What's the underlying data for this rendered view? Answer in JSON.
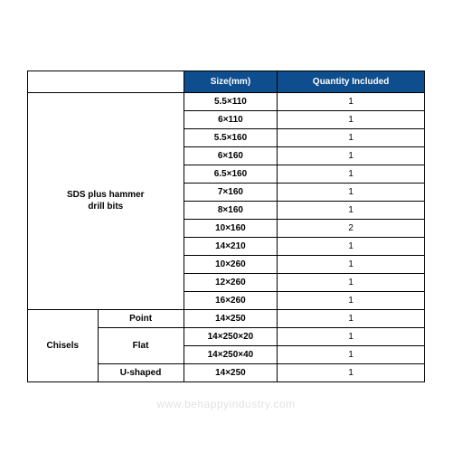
{
  "table": {
    "type": "table",
    "header_bg": "#0f4e8e",
    "header_fg": "#ffffff",
    "border_color": "#000000",
    "background_color": "#ffffff",
    "font_family": "Arial",
    "header_fontsize": 10,
    "cell_fontsize": 10,
    "columns": [
      "",
      "",
      "Size(mm)",
      "Quantity Included"
    ],
    "groups": [
      {
        "label": "SDS plus hammer drill bits",
        "rows": [
          {
            "size": "5.5×110",
            "qty": "1"
          },
          {
            "size": "6×110",
            "qty": "1"
          },
          {
            "size": "5.5×160",
            "qty": "1"
          },
          {
            "size": "6×160",
            "qty": "1"
          },
          {
            "size": "6.5×160",
            "qty": "1"
          },
          {
            "size": "7×160",
            "qty": "1"
          },
          {
            "size": "8×160",
            "qty": "1"
          },
          {
            "size": "10×160",
            "qty": "2"
          },
          {
            "size": "14×210",
            "qty": "1"
          },
          {
            "size": "10×260",
            "qty": "1"
          },
          {
            "size": "12×260",
            "qty": "1"
          },
          {
            "size": "16×260",
            "qty": "1"
          }
        ]
      },
      {
        "label": "Chisels",
        "subgroups": [
          {
            "label": "Point",
            "rows": [
              {
                "size": "14×250",
                "qty": "1"
              }
            ]
          },
          {
            "label": "Flat",
            "rows": [
              {
                "size": "14×250×20",
                "qty": "1"
              },
              {
                "size": "14×250×40",
                "qty": "1"
              }
            ]
          },
          {
            "label": "U-shaped",
            "rows": [
              {
                "size": "14×250",
                "qty": "1"
              }
            ]
          }
        ]
      }
    ]
  },
  "watermark": "www.behappyindustry.com"
}
